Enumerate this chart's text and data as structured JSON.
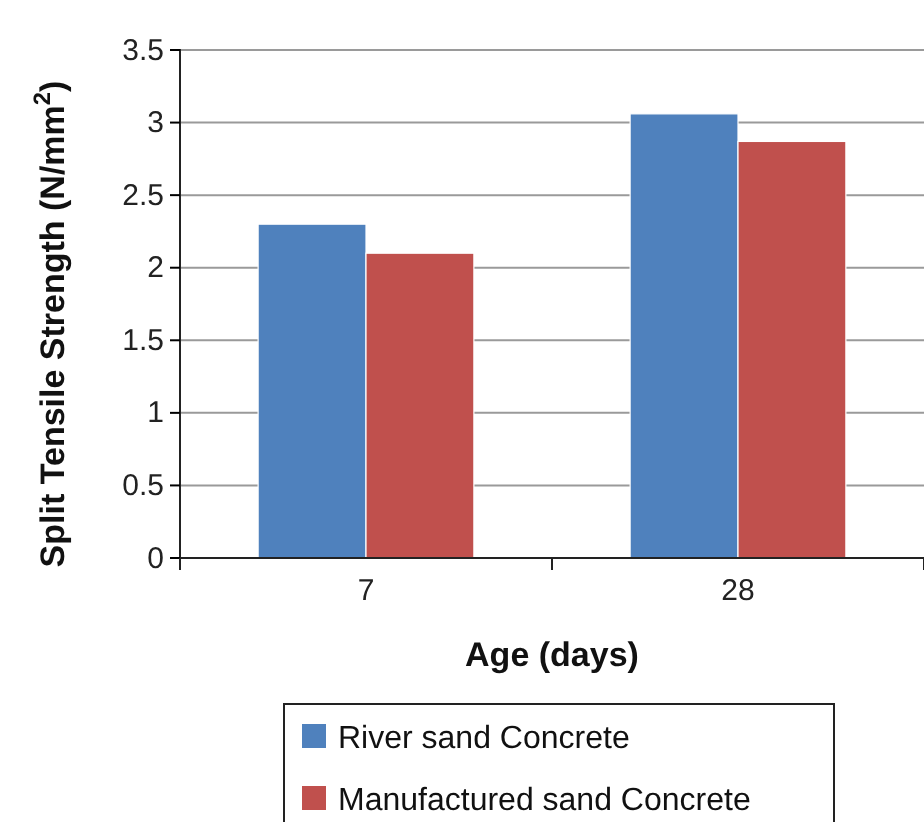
{
  "chart_data": {
    "type": "bar",
    "xlabel": "Age (days)",
    "ylabel": "Split Tensile Strength (N/mm$^{2}$)",
    "categories": [
      "7",
      "28"
    ],
    "series": [
      {
        "name": "River sand Concrete",
        "color": "#4f81bd",
        "values": [
          2.3,
          3.06
        ]
      },
      {
        "name": "Manufactured sand Concrete",
        "color": "#c0504d",
        "values": [
          2.1,
          2.87
        ]
      }
    ],
    "ylim": [
      0,
      3.5
    ],
    "yticks": [
      0,
      0.5,
      1,
      1.5,
      2,
      2.5,
      3,
      3.5
    ],
    "grid": "y",
    "legend": "bottom"
  }
}
